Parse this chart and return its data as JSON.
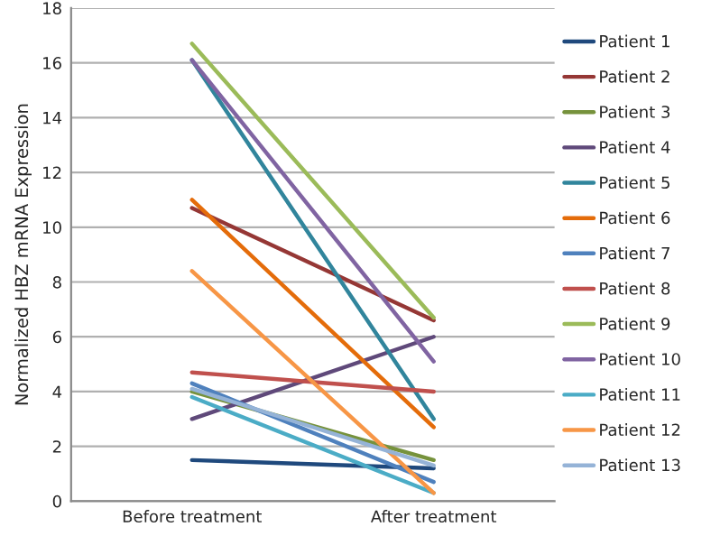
{
  "chart_data": {
    "type": "line",
    "ylabel": "Normalized HBZ mRNA Expression",
    "categories": [
      "Before treatment",
      "After treatment"
    ],
    "series": [
      {
        "name": "Patient 1",
        "color": "#1f497d",
        "values": [
          1.5,
          1.2
        ]
      },
      {
        "name": "Patient 2",
        "color": "#953735",
        "values": [
          10.7,
          6.6
        ]
      },
      {
        "name": "Patient 3",
        "color": "#76923c",
        "values": [
          4.0,
          1.5
        ]
      },
      {
        "name": "Patient 4",
        "color": "#5f497a",
        "values": [
          3.0,
          6.0
        ]
      },
      {
        "name": "Patient 5",
        "color": "#31859c",
        "values": [
          16.1,
          3.0
        ]
      },
      {
        "name": "Patient 6",
        "color": "#e46c0a",
        "values": [
          11.0,
          2.7
        ]
      },
      {
        "name": "Patient 7",
        "color": "#4f81bd",
        "values": [
          4.3,
          0.7
        ]
      },
      {
        "name": "Patient 8",
        "color": "#c0504d",
        "values": [
          4.7,
          4.0
        ]
      },
      {
        "name": "Patient 9",
        "color": "#9bbb59",
        "values": [
          16.7,
          6.7
        ]
      },
      {
        "name": "Patient 10",
        "color": "#8064a2",
        "values": [
          16.1,
          5.1
        ]
      },
      {
        "name": "Patient 11",
        "color": "#4bacc6",
        "values": [
          3.8,
          0.3
        ]
      },
      {
        "name": "Patient 12",
        "color": "#f79646",
        "values": [
          8.4,
          0.3
        ]
      },
      {
        "name": "Patient 13",
        "color": "#95b3d7",
        "values": [
          4.1,
          1.3
        ]
      }
    ],
    "ylim": [
      0,
      18
    ],
    "yticks": [
      0,
      2,
      4,
      6,
      8,
      10,
      12,
      14,
      16,
      18
    ],
    "grid": "y",
    "legend": "right",
    "marker": "none",
    "line_style": "solid"
  }
}
